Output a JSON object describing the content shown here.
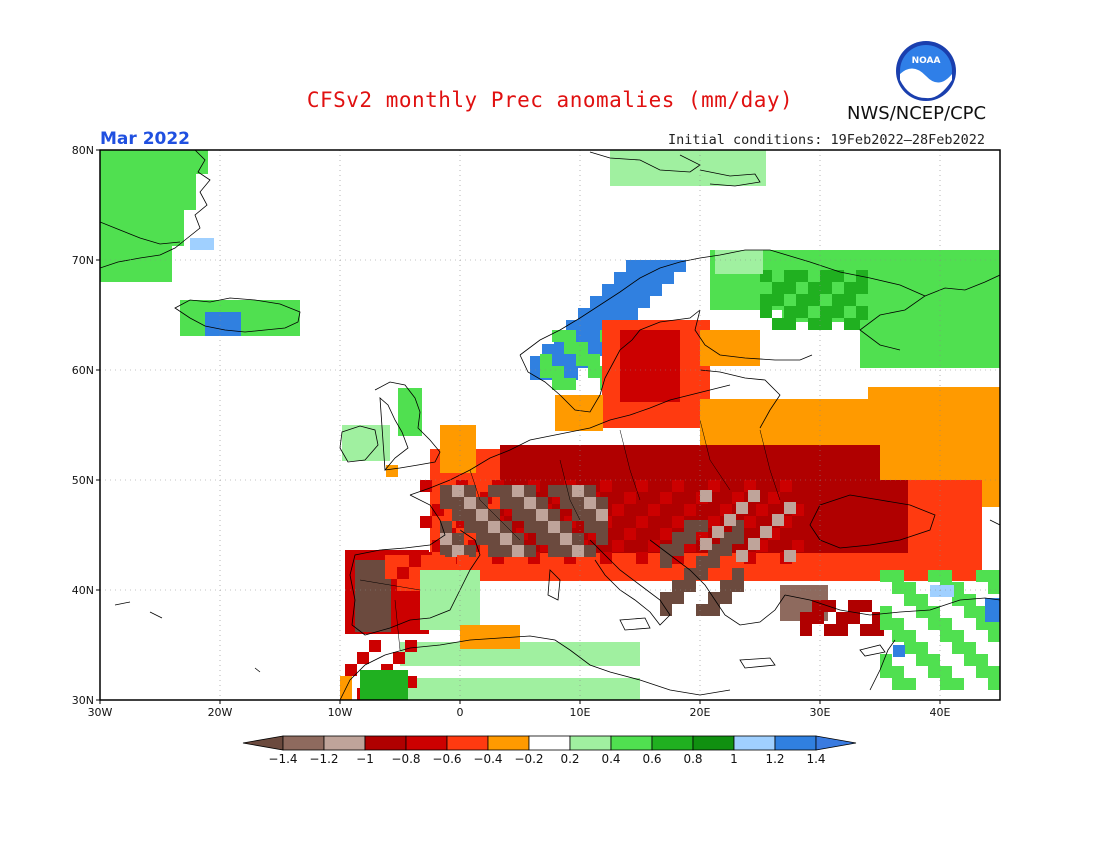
{
  "header": {
    "title": "CFSv2 monthly Prec anomalies (mm/day)",
    "org": "NWS/NCEP/CPC",
    "logo_text": "NOAA",
    "month": "Mar 2022",
    "initial_conditions": "Initial conditions: 19Feb2022–28Feb2022"
  },
  "axes": {
    "lat_labels": [
      "30N",
      "40N",
      "50N",
      "60N",
      "70N",
      "80N"
    ],
    "lon_labels": [
      "30W",
      "20W",
      "10W",
      "0",
      "10E",
      "20E",
      "30E",
      "40E"
    ]
  },
  "colorbar": {
    "labels": [
      "−1.4",
      "−1.2",
      "−1",
      "−0.8",
      "−0.6",
      "−0.4",
      "−0.2",
      "0.2",
      "0.4",
      "0.6",
      "0.8",
      "1",
      "1.2",
      "1.4"
    ],
    "colors": [
      "#6b4a3e",
      "#8e6a5e",
      "#bfa49a",
      "#b00000",
      "#cc0000",
      "#ff3a10",
      "#ff9a00",
      "#ffffff",
      "#a0f0a0",
      "#50e050",
      "#20b020",
      "#109010",
      "#a0d0ff",
      "#3080e0",
      "#3a7be0"
    ]
  },
  "colors": {
    "title": "#e01010",
    "month": "#2050e0",
    "frame": "#000000"
  }
}
